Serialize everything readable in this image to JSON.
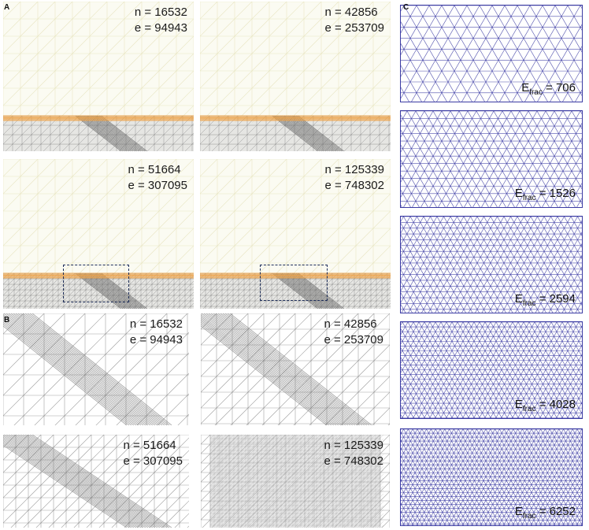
{
  "panels": {
    "A": {
      "letter": "A",
      "tiles": [
        {
          "n": "n = 16532",
          "e": "e = 94943"
        },
        {
          "n": "n = 42856",
          "e": "e = 253709"
        },
        {
          "n": "n = 51664",
          "e": "e = 307095"
        },
        {
          "n": "n = 125339",
          "e": "e = 748302"
        }
      ]
    },
    "B": {
      "letter": "B",
      "tiles": [
        {
          "n": "n = 16532",
          "e": "e = 94943"
        },
        {
          "n": "n = 42856",
          "e": "e = 253709"
        },
        {
          "n": "n = 51664",
          "e": "e = 307095"
        },
        {
          "n": "n = 125339",
          "e": "e = 748302"
        }
      ]
    },
    "C": {
      "letter": "C",
      "tiles": [
        {
          "label": "E",
          "sub": "frac",
          "value": " = 706"
        },
        {
          "label": "E",
          "sub": "frac",
          "value": " = 1526"
        },
        {
          "label": "E",
          "sub": "frac",
          "value": " = 2594"
        },
        {
          "label": "E",
          "sub": "frac",
          "value": " = 4028"
        },
        {
          "label": "E",
          "sub": "frac",
          "value": " = 6252"
        }
      ]
    }
  },
  "colors": {
    "mesh_light": "#e7e4bf",
    "mesh_dark": "#6b6b6b",
    "fracture_band": "#f0a040",
    "c_mesh": "#3b3ba3"
  }
}
